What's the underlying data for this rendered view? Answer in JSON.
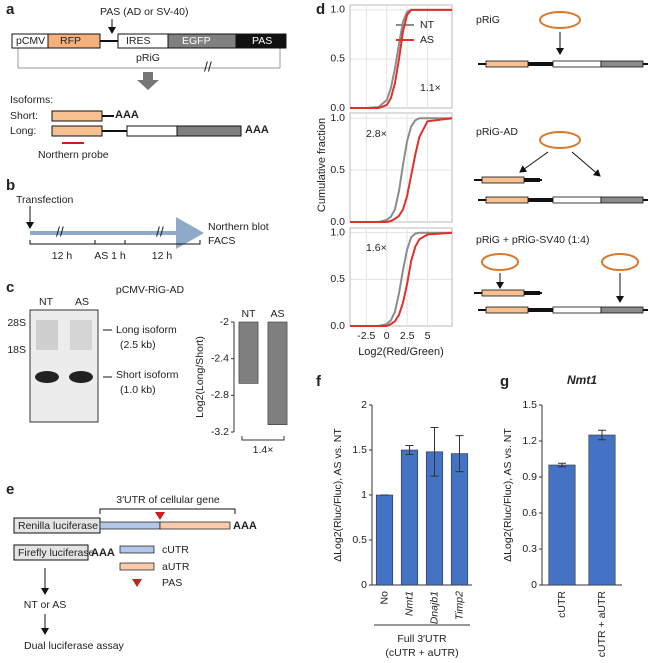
{
  "panel_labels": [
    "a",
    "b",
    "c",
    "d",
    "e",
    "f",
    "g"
  ],
  "panel_a": {
    "pas_label": "PAS (AD or SV-40)",
    "elements": [
      "pCMV",
      "RFP",
      "IRES",
      "EGFP",
      "PAS"
    ],
    "plasmid": "pRiG",
    "isoforms": "Isoforms:",
    "short": "Short:",
    "long": "Long:",
    "polya": "AAA",
    "probe": "Northern probe"
  },
  "panel_b": {
    "start": "Transfection",
    "intervals": [
      "12 h",
      "AS 1 h",
      "12 h"
    ],
    "readouts": [
      "Northern blot",
      "FACS"
    ]
  },
  "panel_c": {
    "title": "pCMV-RiG-AD",
    "lanes": [
      "NT",
      "AS"
    ],
    "markers": [
      "28S",
      "18S"
    ],
    "bands": [
      [
        "Long isoform",
        "(2.5 kb)"
      ],
      [
        "Short isoform",
        "(1.0 kb)"
      ]
    ]
  },
  "panel_d": {
    "constructs": [
      "pRiG",
      "pRiG-AD",
      "pRiG + pRiG-SV40 (1:4)"
    ]
  },
  "panel_e": {
    "utr_label": "3′UTR of cellular gene",
    "renilla": "Renilla luciferase",
    "firefly": "Firefly luciferase",
    "polya": "AAA",
    "legend": [
      "cUTR",
      "aUTR",
      "PAS"
    ],
    "treatment": "NT or AS",
    "assay": "Dual luciferase assay"
  },
  "chart_data": [
    {
      "type": "bar",
      "ylabel": "Log2(Long/Short)",
      "categories": [
        "NT",
        "AS"
      ],
      "values": [
        -2.67,
        -3.12
      ],
      "color": "#7f7f7f",
      "ylim": [
        -3.2,
        -2
      ],
      "yticks": [
        -2,
        -2.4,
        -2.8,
        -3.2
      ],
      "annotation": "1.4×"
    },
    {
      "type": "line",
      "x": [
        -4.5,
        -2.5,
        -1,
        0,
        0.5,
        1,
        1.5,
        2,
        2.5,
        3,
        3.5,
        4,
        5,
        8
      ],
      "series": [
        {
          "name": "NT",
          "color": "#8c8c8c",
          "values": [
            0,
            0,
            0.01,
            0.08,
            0.2,
            0.4,
            0.65,
            0.88,
            0.98,
            1,
            1,
            1,
            1,
            1
          ]
        },
        {
          "name": "AS",
          "color": "#e0302a",
          "values": [
            0,
            0,
            0,
            0.03,
            0.1,
            0.25,
            0.5,
            0.78,
            0.95,
            1,
            1,
            1,
            1,
            1
          ]
        }
      ],
      "legend": true,
      "xlim": [
        -4.5,
        8
      ],
      "ylim": [
        0,
        1.05
      ],
      "xticks": [
        -2.5,
        0,
        2.5,
        5
      ],
      "yticks": [
        {
          "value": 0,
          "label": "0.0"
        },
        0.5,
        {
          "value": 1,
          "label": "1.0"
        }
      ],
      "grid": true,
      "annotation": "1.1×"
    },
    {
      "type": "line",
      "x": [
        -4.5,
        -2.5,
        -1,
        0,
        0.5,
        1,
        1.5,
        2,
        2.5,
        3,
        3.5,
        4,
        5,
        8
      ],
      "series": [
        {
          "color": "#8c8c8c",
          "values": [
            0,
            0,
            0,
            0.02,
            0.05,
            0.12,
            0.3,
            0.55,
            0.78,
            0.92,
            0.98,
            1,
            1,
            1
          ]
        },
        {
          "color": "#e0302a",
          "values": [
            0,
            0,
            0,
            0,
            0.01,
            0.03,
            0.06,
            0.12,
            0.25,
            0.45,
            0.65,
            0.82,
            0.97,
            1
          ]
        }
      ],
      "ylabel": "Cumulative fraction",
      "xlim": [
        -4.5,
        8
      ],
      "ylim": [
        0,
        1.05
      ],
      "xticks": [
        -2.5,
        0,
        2.5,
        5
      ],
      "yticks": [
        {
          "value": 0,
          "label": "0.0"
        },
        0.5,
        {
          "value": 1,
          "label": "1.0"
        }
      ],
      "grid": true,
      "annotation": "2.8×"
    },
    {
      "type": "line",
      "x": [
        -4.5,
        -2.5,
        -1,
        0,
        0.5,
        1,
        1.5,
        2,
        2.5,
        3,
        3.5,
        4,
        5,
        8
      ],
      "series": [
        {
          "color": "#8c8c8c",
          "values": [
            0,
            0,
            0,
            0.02,
            0.06,
            0.15,
            0.35,
            0.6,
            0.82,
            0.95,
            0.99,
            1,
            1,
            1
          ]
        },
        {
          "color": "#e0302a",
          "values": [
            0,
            0,
            0,
            0,
            0.02,
            0.05,
            0.12,
            0.25,
            0.45,
            0.7,
            0.85,
            0.93,
            0.98,
            1
          ]
        }
      ],
      "xlabel": "Log2(Red/Green)",
      "xlim": [
        -4.5,
        8
      ],
      "ylim": [
        0,
        1.05
      ],
      "xticks": [
        -2.5,
        0,
        2.5,
        5
      ],
      "yticks": [
        {
          "value": 0,
          "label": "0.0"
        },
        0.5,
        {
          "value": 1,
          "label": "1.0"
        }
      ],
      "grid": true,
      "annotation": "1.6×"
    },
    {
      "type": "bar",
      "ylabel": "ΔLog2(Rluc/Fluc), AS vs. NT",
      "categories": [
        "No",
        "Nmt1",
        "Dnajb1",
        "Timp2"
      ],
      "category_style": [
        "normal",
        "italic",
        "italic",
        "italic"
      ],
      "values": [
        1,
        1.5,
        1.48,
        1.46
      ],
      "errors": [
        0,
        0.05,
        0.27,
        0.2
      ],
      "color": "#4472c4",
      "ylim": [
        0,
        2
      ],
      "yticks": [
        0,
        0.5,
        1,
        1.5,
        2
      ],
      "group_label": [
        "Full 3′UTR",
        "(cUTR + aUTR)"
      ]
    },
    {
      "type": "bar",
      "title": "Nmt1",
      "ylabel": "ΔLog2(Rluc/Fluc), AS vs. NT",
      "categories": [
        "cUTR",
        "cUTR + aUTR"
      ],
      "values": [
        1,
        1.25
      ],
      "errors": [
        0.015,
        0.04
      ],
      "color": "#4472c4",
      "ylim": [
        0,
        1.5
      ],
      "yticks": [
        0,
        0.3,
        0.6,
        0.9,
        1.2,
        1.5
      ]
    }
  ]
}
